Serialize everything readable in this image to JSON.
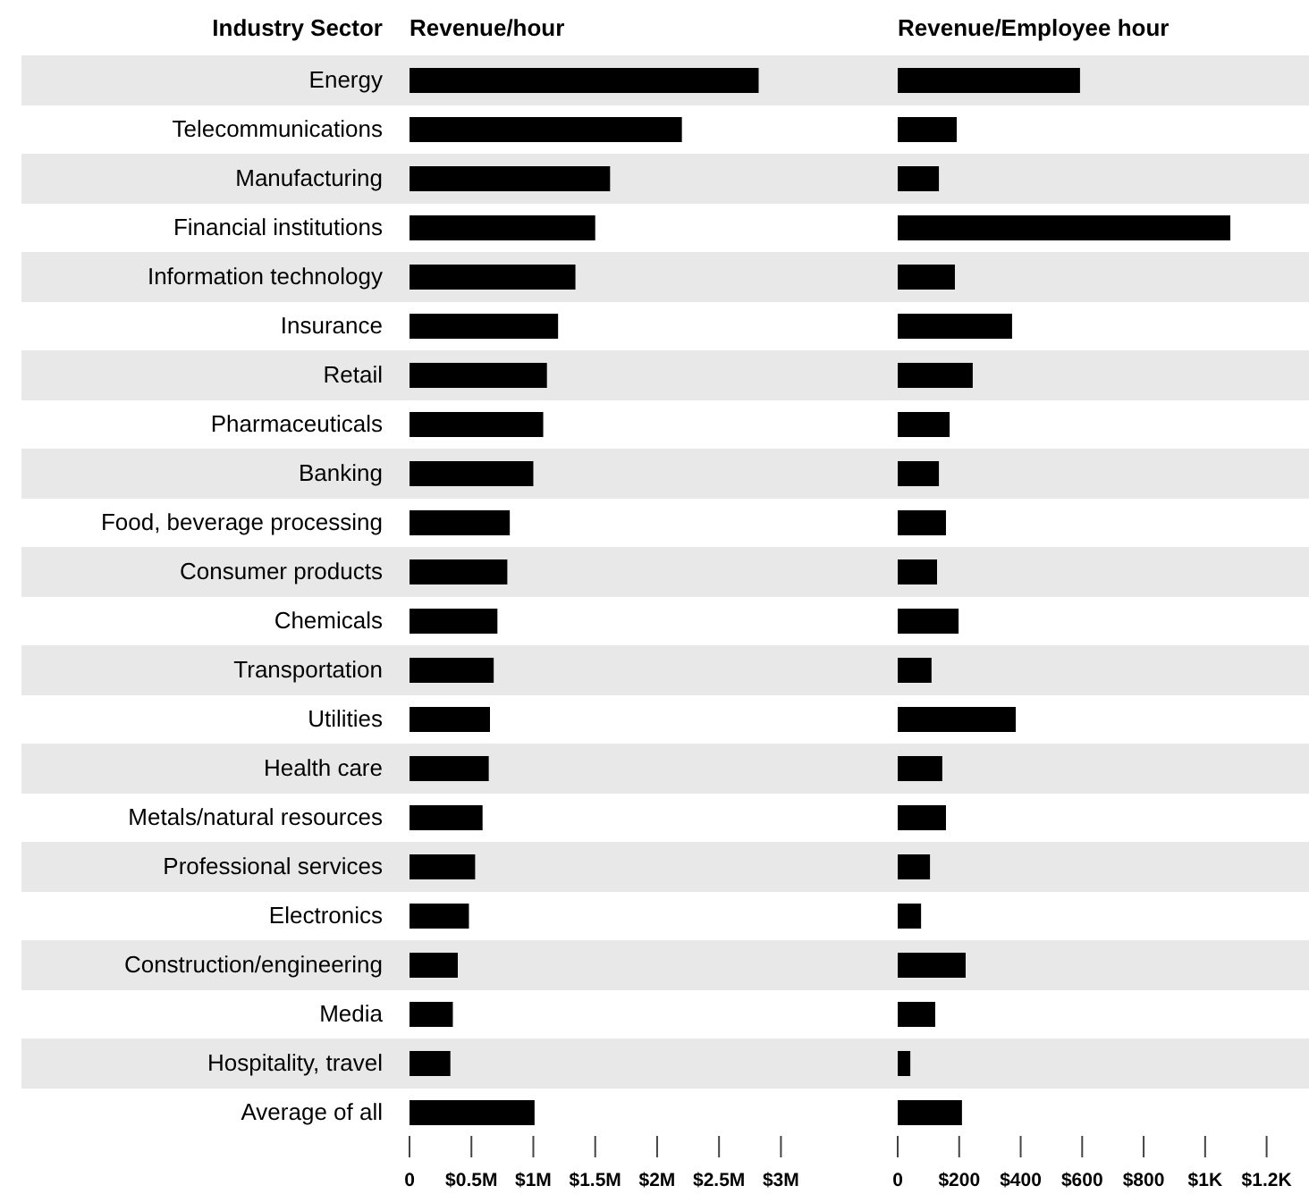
{
  "chart_data": [
    {
      "type": "bar",
      "orientation": "horizontal",
      "title": "Revenue/hour",
      "ylabel": "Industry Sector",
      "categories": [
        "Energy",
        "Telecommunications",
        "Manufacturing",
        "Financial institutions",
        "Information technology",
        "Insurance",
        "Retail",
        "Pharmaceuticals",
        "Banking",
        "Food, beverage processing",
        "Consumer products",
        "Chemicals",
        "Transportation",
        "Utilities",
        "Health care",
        "Metals/natural resources",
        "Professional services",
        "Electronics",
        "Construction/engineering",
        "Media",
        "Hospitality, travel",
        "Average of all"
      ],
      "values": [
        2.82,
        2.2,
        1.62,
        1.5,
        1.34,
        1.2,
        1.11,
        1.08,
        1.0,
        0.81,
        0.79,
        0.71,
        0.68,
        0.65,
        0.64,
        0.59,
        0.53,
        0.48,
        0.39,
        0.35,
        0.33,
        1.01
      ],
      "color": "#000000",
      "xlim": [
        0,
        3
      ],
      "xticks": [
        0,
        {
          "value": 0.5,
          "label": "$0.5M"
        },
        {
          "value": 1,
          "label": "$1M"
        },
        {
          "value": 1.5,
          "label": "$1.5M"
        },
        {
          "value": 2,
          "label": "$2M"
        },
        {
          "value": 2.5,
          "label": "$2.5M"
        },
        {
          "value": 3,
          "label": "$3M"
        }
      ],
      "grid": false
    },
    {
      "type": "bar",
      "orientation": "horizontal",
      "title": "Revenue/Employee hour",
      "categories": [
        null,
        null,
        null,
        null,
        null,
        null,
        null,
        null,
        null,
        null,
        null,
        null,
        null,
        null,
        null,
        null,
        null,
        null,
        null,
        null,
        null,
        null
      ],
      "values": [
        593,
        192,
        134,
        1082,
        186,
        372,
        244,
        169,
        134,
        157,
        128,
        198,
        110,
        384,
        145,
        157,
        105,
        76,
        221,
        122,
        41,
        209
      ],
      "color": "#000000",
      "xlim": [
        0,
        1200
      ],
      "xticks": [
        0,
        {
          "value": 200,
          "label": "$200"
        },
        {
          "value": 400,
          "label": "$400"
        },
        {
          "value": 600,
          "label": "$600"
        },
        {
          "value": 800,
          "label": "$800"
        },
        {
          "value": 1000,
          "label": "$1K"
        },
        {
          "value": 1200,
          "label": "$1.2K"
        }
      ],
      "grid": false
    }
  ]
}
